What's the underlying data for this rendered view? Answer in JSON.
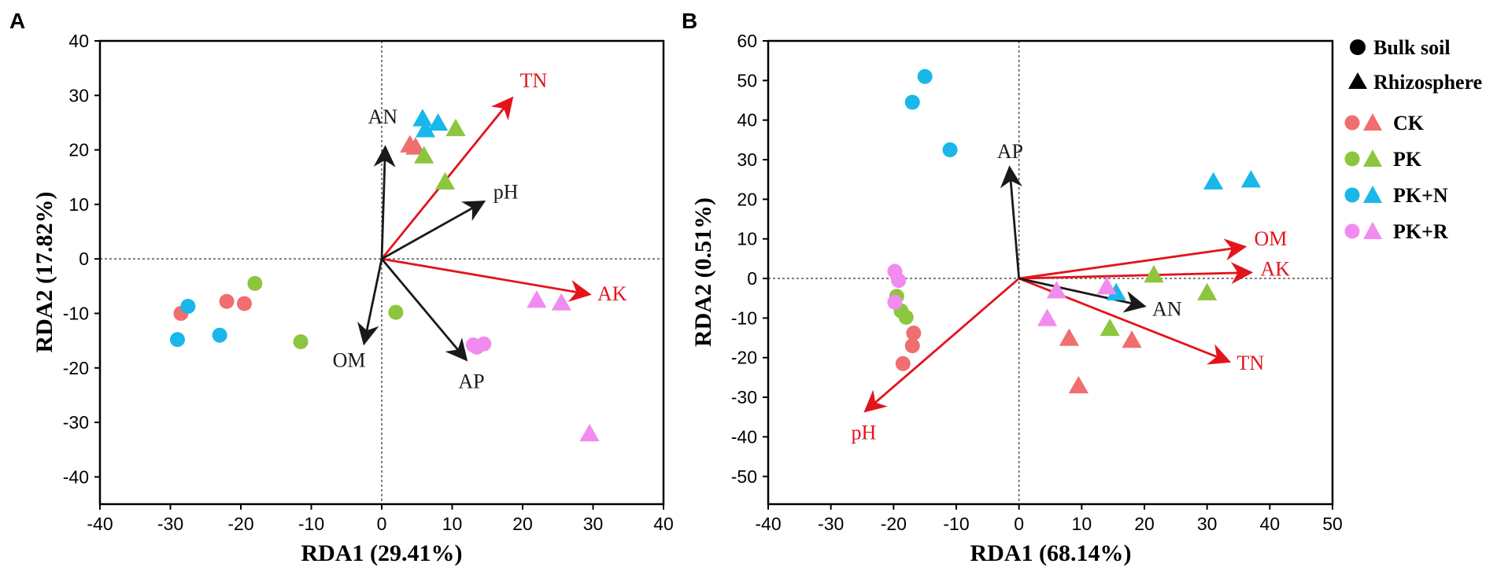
{
  "colors": {
    "CK": "#f06e6e",
    "PK": "#8cc63f",
    "PK+N": "#19b7ea",
    "PK+R": "#f28bf0",
    "env_red": "#e3141b",
    "env_black": "#1a1a1a"
  },
  "legend": {
    "shapes": [
      {
        "label": "Bulk soil",
        "marker": "circle"
      },
      {
        "label": "Rhizosphere",
        "marker": "triangle"
      }
    ],
    "groups": [
      {
        "label": "CK",
        "color_key": "CK"
      },
      {
        "label": "PK",
        "color_key": "PK"
      },
      {
        "label": "PK+N",
        "color_key": "PK+N"
      },
      {
        "label": "PK+R",
        "color_key": "PK+R"
      }
    ]
  },
  "chart_data": [
    {
      "type": "scatter",
      "panel_label": "A",
      "xlabel": "RDA1 (29.41%)",
      "ylabel": "RDA2 (17.82%)",
      "xlim": [
        -40,
        40
      ],
      "ylim": [
        -45,
        40
      ],
      "xticks": [
        -40,
        -30,
        -20,
        -10,
        0,
        10,
        20,
        30,
        40
      ],
      "yticks": [
        -40,
        -30,
        -20,
        -10,
        0,
        10,
        20,
        30,
        40
      ],
      "vectors": [
        {
          "label": "TN",
          "x": 18.5,
          "y": 29.5,
          "color": "red"
        },
        {
          "label": "AK",
          "x": 29.5,
          "y": -6.5,
          "color": "red"
        },
        {
          "label": "pH",
          "x": 14.5,
          "y": 10.5,
          "color": "black"
        },
        {
          "label": "AN",
          "x": 0.5,
          "y": 20.5,
          "color": "black"
        },
        {
          "label": "OM",
          "x": -2.5,
          "y": -15.5,
          "color": "black"
        },
        {
          "label": "AP",
          "x": 12,
          "y": -18.5,
          "color": "black"
        }
      ],
      "points": [
        {
          "group": "CK",
          "shape": "circle",
          "x": -28.5,
          "y": -10
        },
        {
          "group": "CK",
          "shape": "circle",
          "x": -22,
          "y": -7.8
        },
        {
          "group": "CK",
          "shape": "circle",
          "x": -19.5,
          "y": -8.2
        },
        {
          "group": "CK",
          "shape": "triangle",
          "x": 4,
          "y": 21
        },
        {
          "group": "CK",
          "shape": "triangle",
          "x": 4.8,
          "y": 20.6
        },
        {
          "group": "PK",
          "shape": "circle",
          "x": -18,
          "y": -4.5
        },
        {
          "group": "PK",
          "shape": "circle",
          "x": -11.5,
          "y": -15.2
        },
        {
          "group": "PK",
          "shape": "circle",
          "x": 2,
          "y": -9.8
        },
        {
          "group": "PK",
          "shape": "triangle",
          "x": 6,
          "y": 19
        },
        {
          "group": "PK",
          "shape": "triangle",
          "x": 9,
          "y": 14.2
        },
        {
          "group": "PK",
          "shape": "triangle",
          "x": 10.5,
          "y": 24
        },
        {
          "group": "PK+N",
          "shape": "circle",
          "x": -27.5,
          "y": -8.7
        },
        {
          "group": "PK+N",
          "shape": "circle",
          "x": -29,
          "y": -14.8
        },
        {
          "group": "PK+N",
          "shape": "circle",
          "x": -23,
          "y": -14
        },
        {
          "group": "PK+N",
          "shape": "triangle",
          "x": 5.8,
          "y": 25.8
        },
        {
          "group": "PK+N",
          "shape": "triangle",
          "x": 8,
          "y": 25
        },
        {
          "group": "PK+N",
          "shape": "triangle",
          "x": 6.2,
          "y": 23.8
        },
        {
          "group": "PK+R",
          "shape": "circle",
          "x": 13,
          "y": -15.8
        },
        {
          "group": "PK+R",
          "shape": "circle",
          "x": 13.5,
          "y": -16.2
        },
        {
          "group": "PK+R",
          "shape": "circle",
          "x": 14.5,
          "y": -15.6
        },
        {
          "group": "PK+R",
          "shape": "triangle",
          "x": 22,
          "y": -7.5
        },
        {
          "group": "PK+R",
          "shape": "triangle",
          "x": 25.5,
          "y": -8
        },
        {
          "group": "PK+R",
          "shape": "triangle",
          "x": 29.5,
          "y": -32
        }
      ]
    },
    {
      "type": "scatter",
      "panel_label": "B",
      "xlabel": "RDA1 (68.14%)",
      "ylabel": "RDA2 (0.51%)",
      "xlim": [
        -40,
        50
      ],
      "ylim": [
        -57,
        60
      ],
      "xticks": [
        -40,
        -30,
        -20,
        -10,
        0,
        10,
        20,
        30,
        40,
        50
      ],
      "yticks": [
        -50,
        -40,
        -30,
        -20,
        -10,
        0,
        10,
        20,
        30,
        40,
        50,
        60
      ],
      "vectors": [
        {
          "label": "OM",
          "x": 36,
          "y": 8,
          "color": "red"
        },
        {
          "label": "AK",
          "x": 37,
          "y": 1.5,
          "color": "red"
        },
        {
          "label": "TN",
          "x": 33.5,
          "y": -21,
          "color": "red"
        },
        {
          "label": "pH",
          "x": -24.5,
          "y": -33.5,
          "color": "red"
        },
        {
          "label": "AP",
          "x": -1.5,
          "y": 28,
          "color": "black"
        },
        {
          "label": "AN",
          "x": 20,
          "y": -7,
          "color": "black"
        }
      ],
      "points": [
        {
          "group": "CK",
          "shape": "circle",
          "x": -16.8,
          "y": -13.8
        },
        {
          "group": "CK",
          "shape": "circle",
          "x": -17,
          "y": -17
        },
        {
          "group": "CK",
          "shape": "circle",
          "x": -18.5,
          "y": -21.5
        },
        {
          "group": "CK",
          "shape": "triangle",
          "x": 8,
          "y": -15
        },
        {
          "group": "CK",
          "shape": "triangle",
          "x": 9.5,
          "y": -27
        },
        {
          "group": "CK",
          "shape": "triangle",
          "x": 18,
          "y": -15.5
        },
        {
          "group": "PK",
          "shape": "circle",
          "x": -19.5,
          "y": -4.5
        },
        {
          "group": "PK",
          "shape": "circle",
          "x": -18.8,
          "y": -8.2
        },
        {
          "group": "PK",
          "shape": "circle",
          "x": -18,
          "y": -9.8
        },
        {
          "group": "PK",
          "shape": "triangle",
          "x": 14.5,
          "y": -12.5
        },
        {
          "group": "PK",
          "shape": "triangle",
          "x": 21.5,
          "y": 1
        },
        {
          "group": "PK",
          "shape": "triangle",
          "x": 30,
          "y": -3.5
        },
        {
          "group": "PK+N",
          "shape": "circle",
          "x": -15,
          "y": 51
        },
        {
          "group": "PK+N",
          "shape": "circle",
          "x": -17,
          "y": 44.5
        },
        {
          "group": "PK+N",
          "shape": "circle",
          "x": -11,
          "y": 32.5
        },
        {
          "group": "PK+N",
          "shape": "triangle",
          "x": 15.5,
          "y": -3.5
        },
        {
          "group": "PK+N",
          "shape": "triangle",
          "x": 31,
          "y": 24.5
        },
        {
          "group": "PK+N",
          "shape": "triangle",
          "x": 37,
          "y": 25
        },
        {
          "group": "PK+R",
          "shape": "circle",
          "x": -19.8,
          "y": 1.8
        },
        {
          "group": "PK+R",
          "shape": "circle",
          "x": -19.2,
          "y": -0.5
        },
        {
          "group": "PK+R",
          "shape": "circle",
          "x": -19.8,
          "y": -6
        },
        {
          "group": "PK+R",
          "shape": "triangle",
          "x": 4.5,
          "y": -10
        },
        {
          "group": "PK+R",
          "shape": "triangle",
          "x": 6,
          "y": -3
        },
        {
          "group": "PK+R",
          "shape": "triangle",
          "x": 14,
          "y": -2
        }
      ]
    }
  ]
}
